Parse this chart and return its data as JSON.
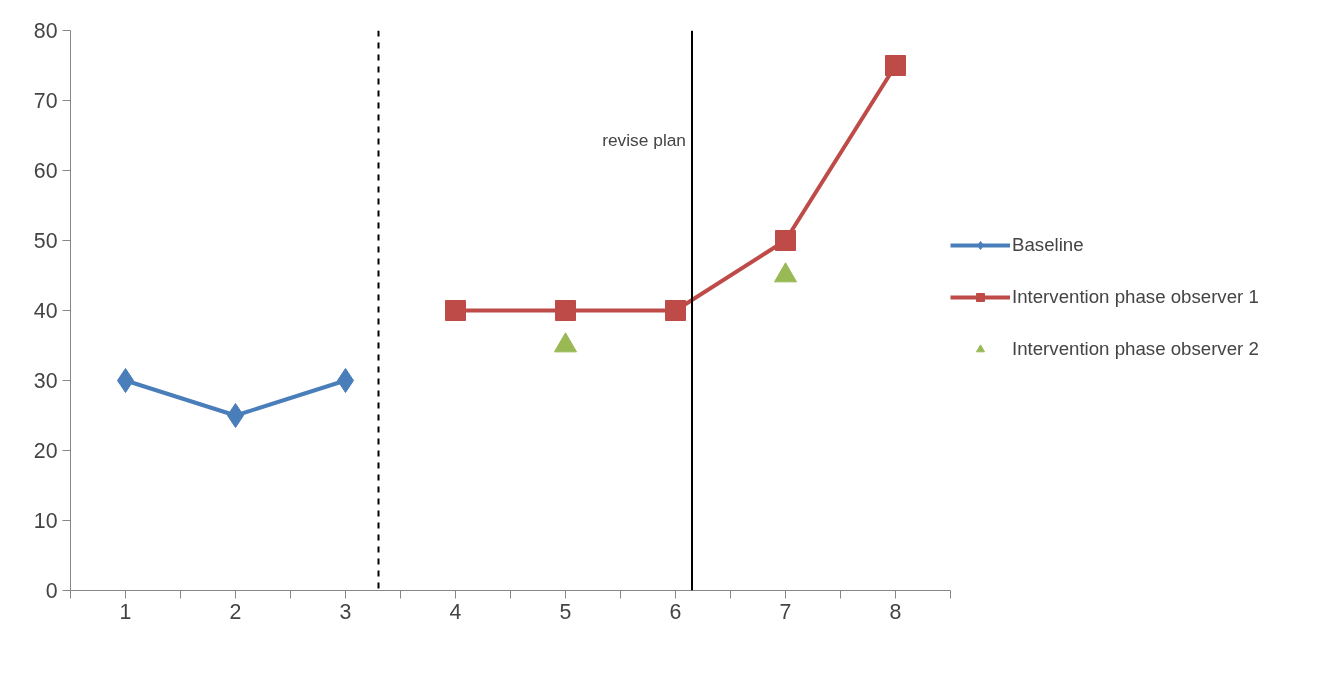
{
  "chart_data": {
    "type": "line",
    "x": [
      1,
      2,
      3,
      4,
      5,
      6,
      7,
      8
    ],
    "series": [
      {
        "name": "Baseline",
        "color": "#4a7ebb",
        "marker": "diamond",
        "values": [
          30,
          25,
          30,
          null,
          null,
          null,
          null,
          null
        ]
      },
      {
        "name": "Intervention phase observer 1",
        "color": "#be4b48",
        "marker": "square",
        "values": [
          null,
          null,
          null,
          40,
          40,
          40,
          50,
          75
        ]
      },
      {
        "name": "Intervention phase observer 2",
        "type": "scatter",
        "color": "#98b954",
        "marker": "triangle",
        "values": [
          null,
          null,
          null,
          null,
          35,
          null,
          45,
          null
        ]
      }
    ],
    "xlim": [
      0.5,
      8.5
    ],
    "xticks": [
      {
        "value": 0.5,
        "label": null
      },
      1,
      {
        "value": 1.5,
        "label": null
      },
      2,
      {
        "value": 2.5,
        "label": null
      },
      3,
      {
        "value": 3.5,
        "label": null
      },
      4,
      {
        "value": 4.5,
        "label": null
      },
      5,
      {
        "value": 5.5,
        "label": null
      },
      6,
      {
        "value": 6.5,
        "label": null
      },
      7,
      {
        "value": 7.5,
        "label": null
      },
      8,
      {
        "value": 8.5,
        "label": null
      }
    ],
    "ylim": [
      0,
      80
    ],
    "yticks": [
      0,
      10,
      20,
      30,
      40,
      50,
      60,
      70,
      80
    ],
    "ref_lines": [
      {
        "axis": "x",
        "value": 3.3,
        "label": null,
        "color": "#000000",
        "line_style": "dashed"
      },
      {
        "axis": "x",
        "value": 6.15,
        "label": "revise plan",
        "color": "#000000",
        "line_style": "solid"
      }
    ],
    "grid": false,
    "legend": "right",
    "line_style": "solid"
  }
}
